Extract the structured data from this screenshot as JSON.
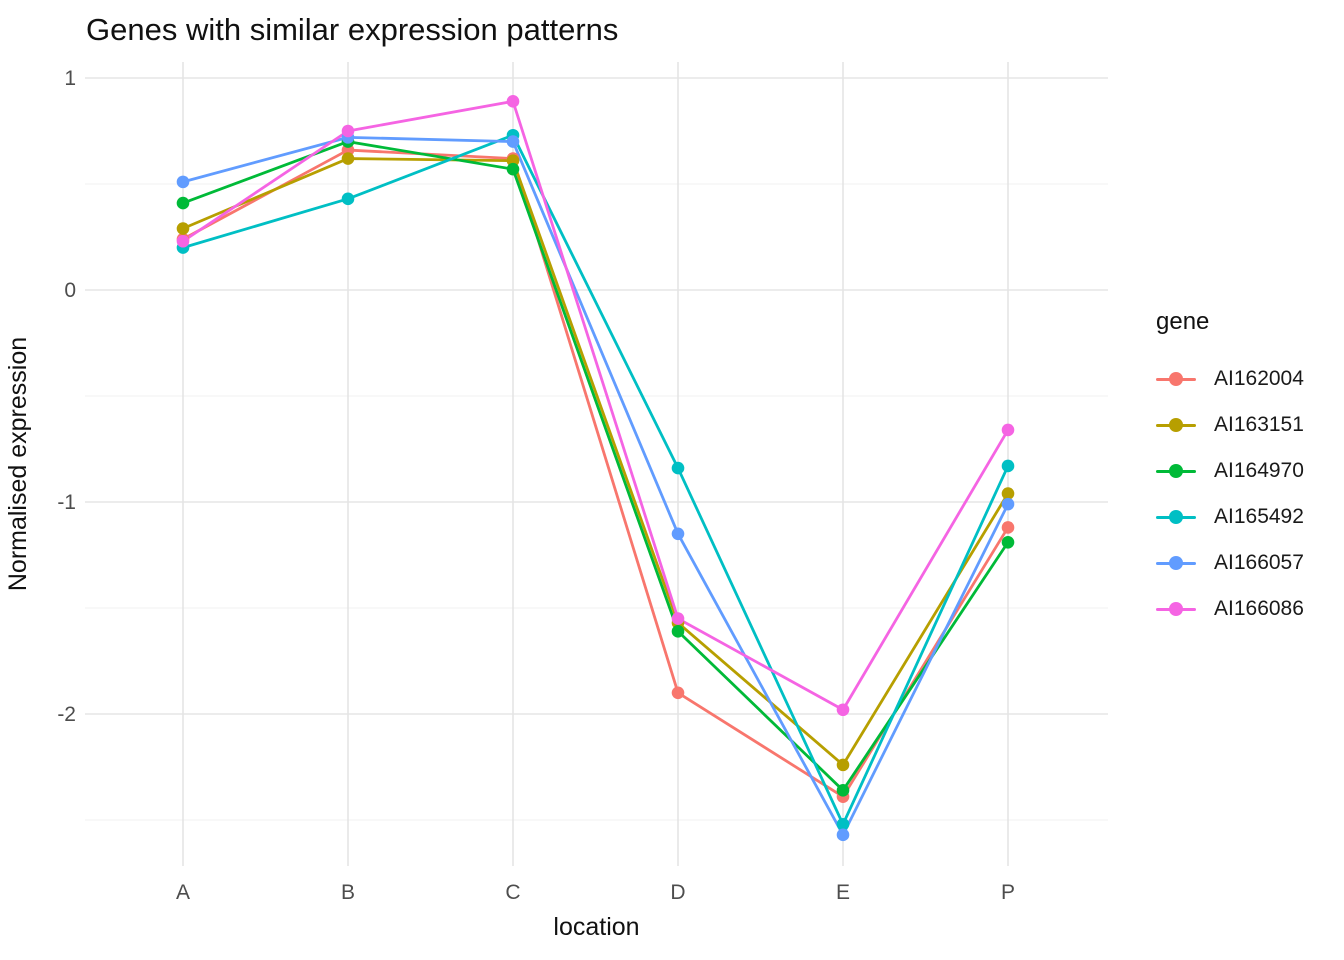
{
  "title": "Genes with similar expression patterns",
  "chart_data": {
    "type": "line",
    "title": "Genes with similar expression patterns",
    "xlabel": "location",
    "ylabel": "Normalised expression",
    "categories": [
      "A",
      "B",
      "C",
      "D",
      "E",
      "P"
    ],
    "y_major_ticks": [
      1,
      0,
      -1,
      -2
    ],
    "y_minor_ticks": [
      0.5,
      -0.5,
      -1.5,
      -2.5
    ],
    "ylim": [
      -2.72,
      1.08
    ],
    "grid": true,
    "legend_title": "gene",
    "legend_position": "right",
    "series": [
      {
        "name": "AI162004",
        "color": "#F8766D",
        "values": [
          0.24,
          0.66,
          0.62,
          -1.9,
          -2.39,
          -1.12
        ]
      },
      {
        "name": "AI163151",
        "color": "#B79F00",
        "values": [
          0.29,
          0.62,
          0.61,
          -1.57,
          -2.24,
          -0.96
        ]
      },
      {
        "name": "AI164970",
        "color": "#00BA38",
        "values": [
          0.41,
          0.7,
          0.57,
          -1.61,
          -2.36,
          -1.19
        ]
      },
      {
        "name": "AI165492",
        "color": "#00BFC4",
        "values": [
          0.2,
          0.43,
          0.73,
          -0.84,
          -2.52,
          -0.83
        ]
      },
      {
        "name": "AI166057",
        "color": "#619CFF",
        "values": [
          0.51,
          0.72,
          0.7,
          -1.15,
          -2.57,
          -1.01
        ]
      },
      {
        "name": "AI166086",
        "color": "#F564E3",
        "values": [
          0.23,
          0.75,
          0.89,
          -1.55,
          -1.98,
          -0.66
        ]
      }
    ]
  },
  "style_colors": {
    "major_grid": "#e5e5e5",
    "minor_grid": "#f0f0f0",
    "tick_text": "#4d4d4d",
    "text": "#111111"
  }
}
